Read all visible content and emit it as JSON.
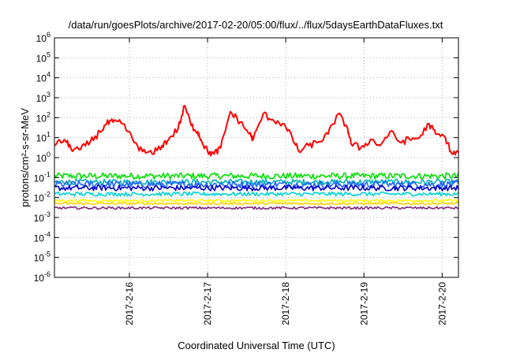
{
  "chart_data": {
    "type": "line",
    "title": "/data/run/goesPlots/archive/2017-02-20/05:00/flux/../flux/5daysEarthDataFluxes.txt",
    "xlabel": "Coordinated Universal Time (UTC)",
    "ylabel": "protons/cm²-s-sr-MeV",
    "y_scale": "log",
    "grid": true,
    "ylim": [
      1e-06,
      1000000.0
    ],
    "xlim": [
      "2017-02-15 01:00",
      "2017-02-20 05:00"
    ],
    "x_ticks": [
      "2017-2-16",
      "2017-2-17",
      "2017-2-18",
      "2017-2-19",
      "2017-2-20"
    ],
    "y_ticks": [
      {
        "base": "10",
        "exp": "6"
      },
      {
        "base": "10",
        "exp": "5"
      },
      {
        "base": "10",
        "exp": "4"
      },
      {
        "base": "10",
        "exp": "3"
      },
      {
        "base": "10",
        "exp": "2"
      },
      {
        "base": "10",
        "exp": "1"
      },
      {
        "base": "10",
        "exp": "0"
      },
      {
        "base": "10",
        "exp": "-1"
      },
      {
        "base": "10",
        "exp": "-2"
      },
      {
        "base": "10",
        "exp": "-3"
      },
      {
        "base": "10",
        "exp": "-4"
      },
      {
        "base": "10",
        "exp": "-5"
      },
      {
        "base": "10",
        "exp": "-6"
      }
    ],
    "series": [
      {
        "color": "#ff0000",
        "x": [
          "2017-02-15 01:00",
          "2017-02-15 04:00",
          "2017-02-15 06:00",
          "2017-02-15 09:00",
          "2017-02-15 12:00",
          "2017-02-15 15:00",
          "2017-02-15 17:00",
          "2017-02-15 19:00",
          "2017-02-15 22:00",
          "2017-02-16 01:00",
          "2017-02-16 04:00",
          "2017-02-16 07:00",
          "2017-02-16 10:00",
          "2017-02-16 12:00",
          "2017-02-16 15:00",
          "2017-02-16 17:00",
          "2017-02-16 19:00",
          "2017-02-16 21:00",
          "2017-02-16 22:00",
          "2017-02-17 00:00",
          "2017-02-17 02:00",
          "2017-02-17 04:00",
          "2017-02-17 07:00",
          "2017-02-17 10:00",
          "2017-02-17 13:00",
          "2017-02-17 14:00",
          "2017-02-17 17:00",
          "2017-02-17 20:00",
          "2017-02-17 23:00",
          "2017-02-18 02:00",
          "2017-02-18 04:00",
          "2017-02-18 07:00",
          "2017-02-18 10:00",
          "2017-02-18 13:00",
          "2017-02-18 16:00",
          "2017-02-18 19:00",
          "2017-02-18 20:00",
          "2017-02-18 23:00",
          "2017-02-19 02:00",
          "2017-02-19 05:00",
          "2017-02-19 08:00",
          "2017-02-19 11:00",
          "2017-02-19 14:00",
          "2017-02-19 17:00",
          "2017-02-19 20:00",
          "2017-02-19 22:00",
          "2017-02-20 01:00",
          "2017-02-20 03:00",
          "2017-02-20 05:00"
        ],
        "y": [
          4,
          8,
          3,
          2.5,
          6,
          20,
          50,
          60,
          50,
          8,
          2,
          1.5,
          4,
          8,
          30,
          400,
          40,
          20,
          8,
          2,
          1.5,
          3,
          200,
          60,
          15,
          8,
          150,
          80,
          50,
          10,
          2,
          4,
          6,
          15,
          150,
          30,
          5,
          3,
          8,
          4,
          20,
          6,
          8,
          10,
          50,
          15,
          10,
          1.5,
          1.8
        ]
      },
      {
        "color": "#00e000",
        "level": 0.12
      },
      {
        "color": "#00b4b4",
        "level": 0.06
      },
      {
        "color": "#1e64ff",
        "level": 0.045
      },
      {
        "color": "#0000c8",
        "level": 0.03
      },
      {
        "color": "#00d2d2",
        "level": 0.015
      },
      {
        "color": "#ffff00",
        "level": 0.007
      },
      {
        "color": "#ffd200",
        "level": 0.005
      },
      {
        "color": "#80287a",
        "level": 0.003
      }
    ]
  }
}
